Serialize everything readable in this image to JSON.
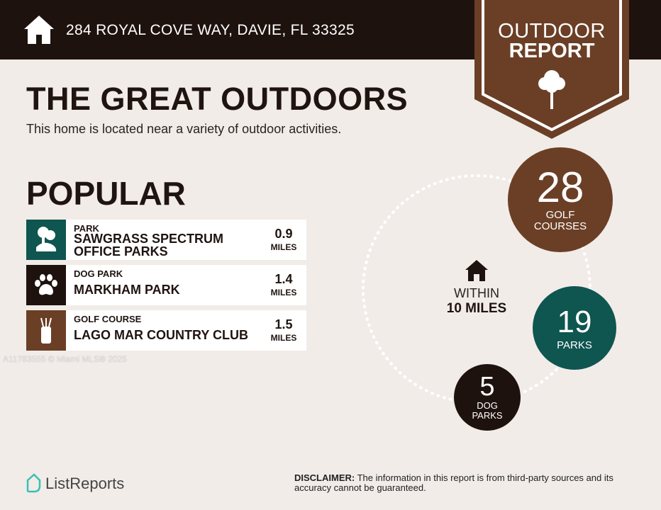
{
  "header": {
    "address": "284 ROYAL COVE WAY, DAVIE, FL 33325",
    "icon": "home-icon"
  },
  "badge": {
    "line1": "OUTDOOR",
    "line2": "REPORT",
    "icon": "tree-icon"
  },
  "main": {
    "title": "THE GREAT OUTDOORS",
    "subtitle": "This home is located near a variety of outdoor activities.",
    "popular_heading": "POPULAR"
  },
  "popular": [
    {
      "category": "PARK",
      "name": "SAWGRASS SPECTRUM OFFICE PARKS",
      "distance": "0.9",
      "unit": "MILES",
      "icon": "park-icon",
      "color": "#0f5550"
    },
    {
      "category": "DOG PARK",
      "name": "MARKHAM PARK",
      "distance": "1.4",
      "unit": "MILES",
      "icon": "paw-icon",
      "color": "#1e120e"
    },
    {
      "category": "GOLF COURSE",
      "name": "LAGO MAR COUNTRY CLUB",
      "distance": "1.5",
      "unit": "MILES",
      "icon": "golf-bag-icon",
      "color": "#6b3f26"
    }
  ],
  "watermark": "A11783555 © Miami MLS® 2025",
  "summary": {
    "within_line1": "WITHIN",
    "within_line2": "10 MILES",
    "golf": {
      "count": "28",
      "label1": "GOLF",
      "label2": "COURSES",
      "color": "#6b3f26"
    },
    "parks": {
      "count": "19",
      "label1": "PARKS",
      "color": "#0f5550"
    },
    "dog": {
      "count": "5",
      "label1": "DOG",
      "label2": "PARKS",
      "color": "#1e120e"
    }
  },
  "footer": {
    "brand": "ListReports",
    "disclaimer_label": "DISCLAIMER:",
    "disclaimer_text": " The information in this report is from third-party sources and its accuracy cannot be guaranteed."
  }
}
